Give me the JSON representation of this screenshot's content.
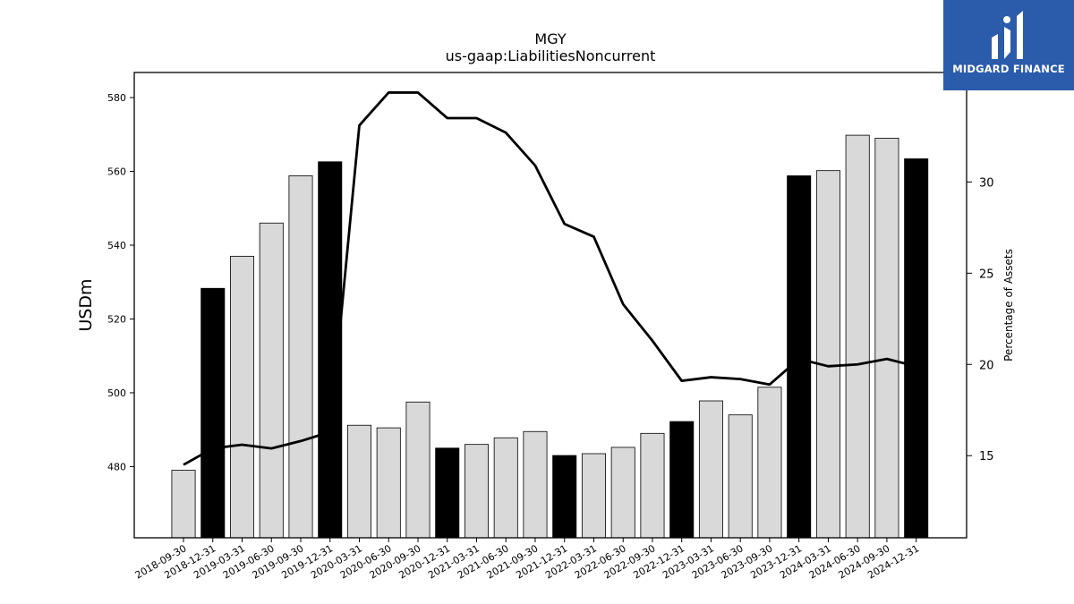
{
  "chart_data": {
    "type": "bar+line",
    "title": "MGY",
    "subtitle": "us-gaap:LiabilitiesNoncurrent",
    "ylabel": "USDm",
    "y2label": "Percentage of Assets",
    "ylim": [
      460.7,
      586.8
    ],
    "y2lim": [
      10.5,
      36
    ],
    "yticks": [
      480,
      500,
      520,
      540,
      560,
      580
    ],
    "y2ticks": [
      15,
      20,
      25,
      30
    ],
    "categories": [
      "2018-09-30",
      "2018-12-31",
      "2019-03-31",
      "2019-06-30",
      "2019-09-30",
      "2019-12-31",
      "2020-03-31",
      "2020-06-30",
      "2020-09-30",
      "2020-12-31",
      "2021-03-31",
      "2021-06-30",
      "2021-09-30",
      "2021-12-31",
      "2022-03-31",
      "2022-06-30",
      "2022-09-30",
      "2022-12-31",
      "2023-03-31",
      "2023-06-30",
      "2023-09-30",
      "2023-12-31",
      "2024-03-31",
      "2024-06-30",
      "2024-09-30",
      "2024-12-31"
    ],
    "series": [
      {
        "type": "bar",
        "values": [
          479,
          528.3,
          537,
          546,
          558.8,
          562.6,
          491.2,
          490.5,
          497.5,
          485,
          486,
          487.8,
          489.5,
          483,
          483.5,
          485.2,
          489,
          492.2,
          497.8,
          494,
          501.5,
          558.8,
          560.2,
          569.8,
          569,
          563.4
        ],
        "highlight": [
          false,
          true,
          false,
          false,
          false,
          true,
          false,
          false,
          false,
          true,
          false,
          false,
          false,
          true,
          false,
          false,
          false,
          true,
          false,
          false,
          false,
          true,
          false,
          false,
          false,
          true
        ],
        "color": "#d9d9d9",
        "highlight_color": "#000000"
      },
      {
        "type": "line",
        "axis": "right",
        "values": [
          14.5,
          15.4,
          15.6,
          15.4,
          15.8,
          16.3,
          33.1,
          34.9,
          34.9,
          33.5,
          33.5,
          32.7,
          30.9,
          27.7,
          27.0,
          23.3,
          21.3,
          19.1,
          19.3,
          19.2,
          18.9,
          20.3,
          19.9,
          20.0,
          20.3,
          19.9
        ],
        "color": "#000000"
      }
    ],
    "grid": false,
    "legend": "none"
  },
  "logo": {
    "text": "MIDGARD FINANCE",
    "background": "#2b5bab"
  }
}
